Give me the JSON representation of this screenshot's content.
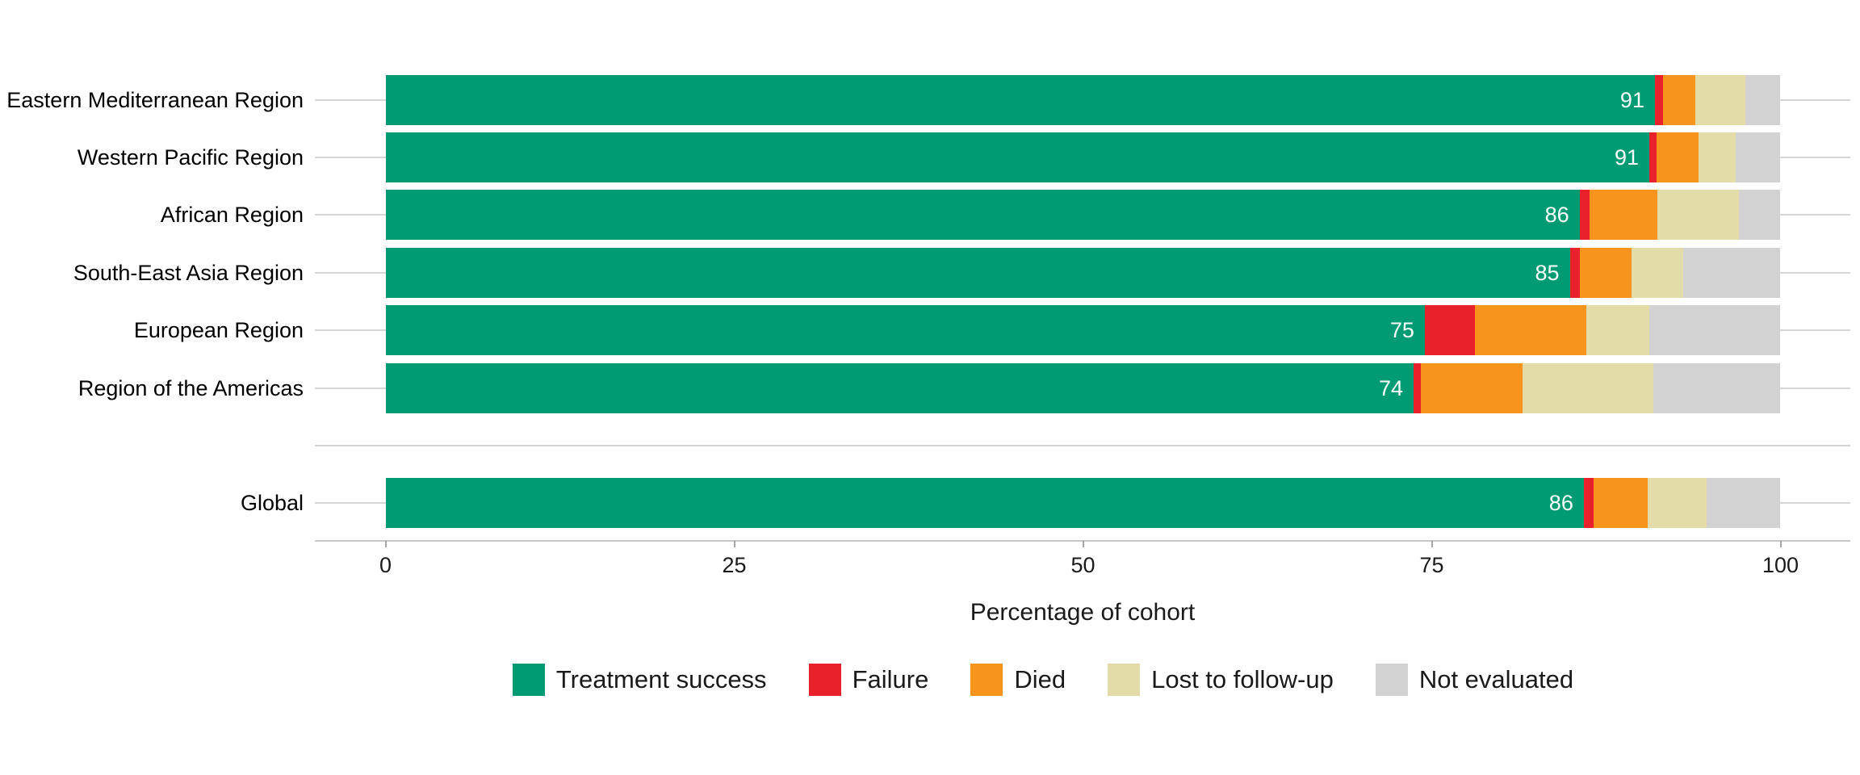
{
  "chart_data": {
    "type": "bar",
    "variant": "horizontal_stacked",
    "title": "",
    "xlabel": "Percentage of cohort",
    "ylabel": "",
    "xlim": [
      0,
      100
    ],
    "x_ticks": [
      0,
      25,
      50,
      75,
      100
    ],
    "grid": "horizontal row lines only",
    "legend_position": "bottom",
    "categories": [
      "Eastern Mediterranean Region",
      "Western Pacific Region",
      "African Region",
      "South-East Asia Region",
      "European Region",
      "Region of the Americas",
      "Global"
    ],
    "series": [
      {
        "name": "Treatment success",
        "color": "#009b72",
        "values": [
          91.0,
          90.6,
          85.6,
          84.9,
          74.5,
          73.7,
          85.9
        ]
      },
      {
        "name": "Failure",
        "color": "#e8212b",
        "values": [
          0.6,
          0.5,
          0.7,
          0.7,
          3.6,
          0.5,
          0.7
        ]
      },
      {
        "name": "Died",
        "color": "#f7941e",
        "values": [
          2.3,
          3.0,
          4.9,
          3.7,
          8.0,
          7.3,
          3.9
        ]
      },
      {
        "name": "Lost to follow-up",
        "color": "#e3dca9",
        "values": [
          3.6,
          2.7,
          5.8,
          3.7,
          4.5,
          9.4,
          4.2
        ]
      },
      {
        "name": "Not evaluated",
        "color": "#d2d2d3",
        "values": [
          2.5,
          3.2,
          3.0,
          7.0,
          9.4,
          9.1,
          5.3
        ]
      }
    ],
    "bar_labels": [
      "91",
      "91",
      "86",
      "85",
      "75",
      "74",
      "86"
    ],
    "axis_colors": {
      "gridline": "#d5d5d5",
      "axis_line": "#c7c7c7",
      "tick_mark": "#a6a6a6",
      "tick_label": "#1a1a1a",
      "bar_value_label": "#ffffff"
    }
  }
}
